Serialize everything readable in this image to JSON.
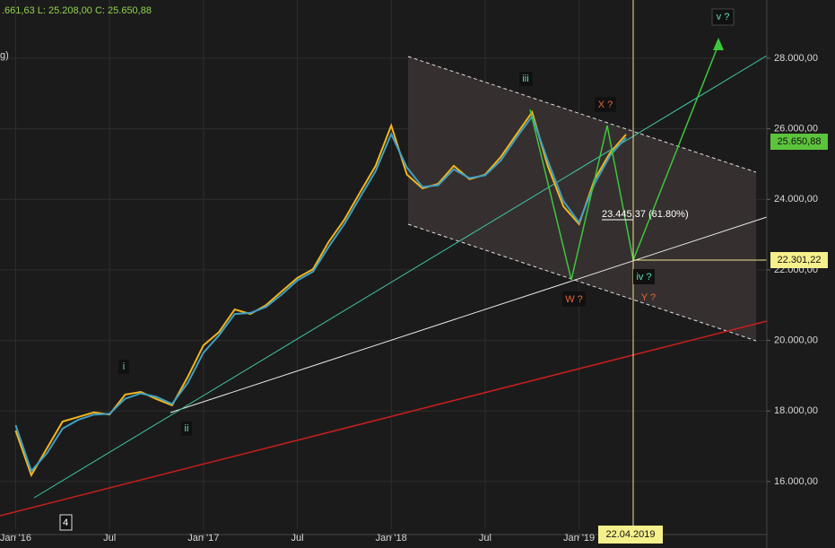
{
  "chart_data": {
    "type": "line",
    "header_text": ".661,63   L: 25.208,00   C: 25.650,88",
    "header_text_2": "g)",
    "x": [
      "2016-01",
      "2016-02",
      "2016-03",
      "2016-04",
      "2016-05",
      "2016-06",
      "2016-07",
      "2016-08",
      "2016-09",
      "2016-10",
      "2016-11",
      "2016-12",
      "2017-01",
      "2017-02",
      "2017-03",
      "2017-04",
      "2017-05",
      "2017-06",
      "2017-07",
      "2017-08",
      "2017-09",
      "2017-10",
      "2017-11",
      "2017-12",
      "2018-01",
      "2018-02",
      "2018-03",
      "2018-04",
      "2018-05",
      "2018-06",
      "2018-07",
      "2018-08",
      "2018-09",
      "2018-10",
      "2018-11",
      "2018-12",
      "2019-01",
      "2019-02",
      "2019-03",
      "2019-04"
    ],
    "series": [
      {
        "color": "#f2b61c",
        "values": [
          17450,
          16180,
          16940,
          17700,
          17830,
          17960,
          17900,
          18465,
          18540,
          18340,
          18160,
          18970,
          19860,
          20240,
          20880,
          20750,
          21000,
          21390,
          21770,
          22020,
          22790,
          23420,
          24190,
          24950,
          26090,
          24700,
          24310,
          24440,
          24950,
          24570,
          24700,
          25200,
          25840,
          26470,
          24950,
          23800,
          23300,
          24570,
          25330,
          25840
        ]
      },
      {
        "color": "#3e9fc4",
        "values": [
          17600,
          16300,
          16800,
          17500,
          17750,
          17900,
          17920,
          18350,
          18500,
          18400,
          18200,
          18800,
          19650,
          20150,
          20750,
          20780,
          20950,
          21300,
          21700,
          21950,
          22650,
          23300,
          24050,
          24800,
          25850,
          24900,
          24350,
          24400,
          24850,
          24600,
          24680,
          25100,
          25750,
          26350,
          25100,
          23950,
          23350,
          24450,
          25250,
          25750
        ]
      }
    ],
    "xlim": [
      "2015-12",
      "2020-01"
    ],
    "xticks": [
      {
        "value": "2016-01",
        "label": "Jan '16"
      },
      {
        "value": "2016-07",
        "label": "Jul"
      },
      {
        "value": "2017-01",
        "label": "Jan '17"
      },
      {
        "value": "2017-07",
        "label": "Jul"
      },
      {
        "value": "2018-01",
        "label": "Jan '18"
      },
      {
        "value": "2018-07",
        "label": "Jul"
      },
      {
        "value": "2019-01",
        "label": "Jan '19"
      }
    ],
    "ylim": [
      14650,
      29650
    ],
    "yticks": [
      {
        "value": 16000,
        "label": "16.000,00"
      },
      {
        "value": 18000,
        "label": "18.000,00"
      },
      {
        "value": 20000,
        "label": "20.000,00"
      },
      {
        "value": 22000,
        "label": "22.000,00"
      },
      {
        "value": 24000,
        "label": "24.000,00"
      },
      {
        "value": 26000,
        "label": "26.000,00"
      },
      {
        "value": 28000,
        "label": "28.000,00"
      }
    ],
    "grid": true,
    "last_price_label": "25.650,88",
    "level_label": "22.301,22",
    "date_label": "22.04.2019",
    "fib_label": "23.445,37 (61.80%)",
    "wave_labels": [
      "i",
      "ii",
      "iii",
      "iv ?",
      "v ?",
      "W ?",
      "X ?",
      "Y ?",
      "4"
    ]
  }
}
